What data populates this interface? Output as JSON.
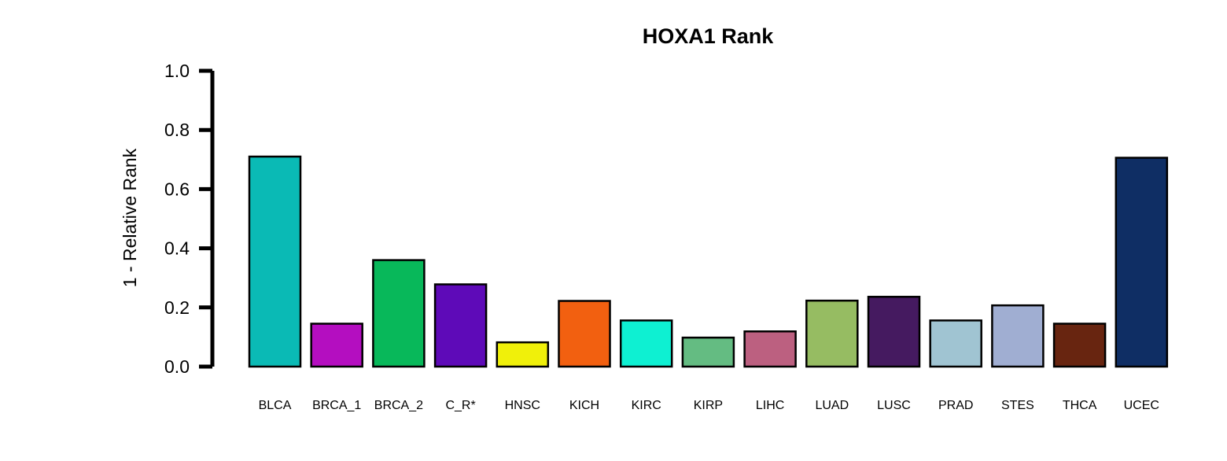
{
  "chart_data": {
    "type": "bar",
    "title": "HOXA1 Rank",
    "ylabel": "1 - Relative Rank",
    "xlabel": "",
    "ylim": [
      0,
      1
    ],
    "yticks": [
      "0.0",
      "0.2",
      "0.4",
      "0.6",
      "0.8",
      "1.0"
    ],
    "grid": false,
    "categories": [
      "BLCA",
      "BRCA_1",
      "BRCA_2",
      "C_R*",
      "HNSC",
      "KICH",
      "KIRC",
      "KIRP",
      "LIHC",
      "LUAD",
      "LUSC",
      "PRAD",
      "STES",
      "THCA",
      "UCEC"
    ],
    "values": [
      0.71,
      0.145,
      0.36,
      0.278,
      0.082,
      0.222,
      0.156,
      0.098,
      0.119,
      0.223,
      0.236,
      0.156,
      0.207,
      0.145,
      0.706
    ],
    "colors": [
      "#0ABAB5",
      "#B40EC0",
      "#08B85A",
      "#5E0AB8",
      "#F0F00A",
      "#F26010",
      "#0EF0D2",
      "#64BC82",
      "#BC6080",
      "#96BC62",
      "#451A60",
      "#A0C4D2",
      "#A0AED2",
      "#682510",
      "#0F2E64"
    ]
  }
}
